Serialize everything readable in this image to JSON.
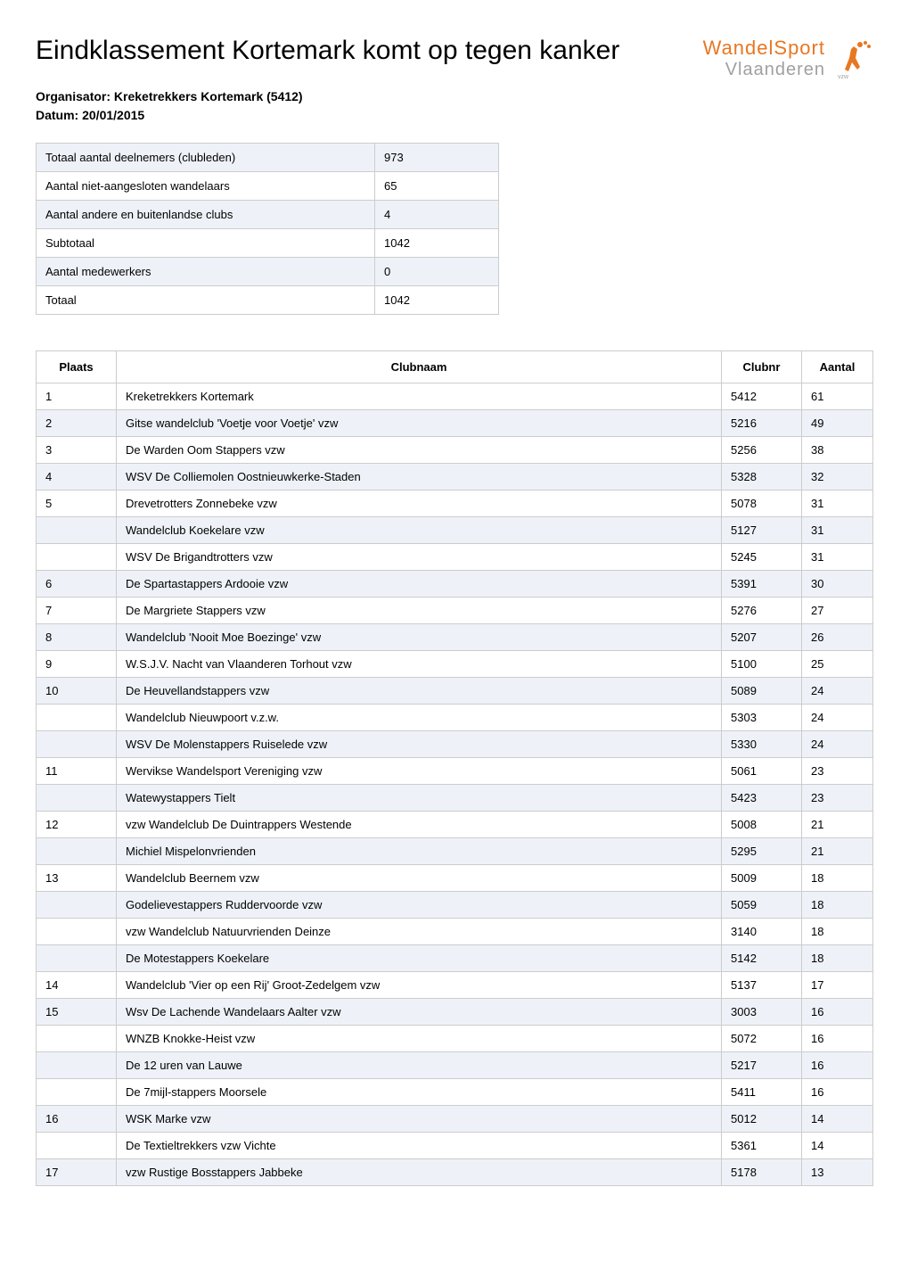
{
  "title": "Eindklassement Kortemark komt op tegen kanker",
  "organizer_label": "Organisator: Kreketrekkers Kortemark (5412)",
  "date_label": "Datum: 20/01/2015",
  "logo": {
    "line1": "WandelSport",
    "line2": "Vlaanderen",
    "suffix": "vzw",
    "primary_color": "#e87722",
    "secondary_color": "#a0a0a0"
  },
  "summary": {
    "rows": [
      {
        "label": "Totaal aantal deelnemers (clubleden)",
        "value": "973"
      },
      {
        "label": "Aantal niet-aangesloten wandelaars",
        "value": "65"
      },
      {
        "label": "Aantal andere en buitenlandse clubs",
        "value": "4"
      },
      {
        "label": "Subtotaal",
        "value": "1042"
      },
      {
        "label": "Aantal medewerkers",
        "value": "0"
      },
      {
        "label": "Totaal",
        "value": "1042"
      }
    ]
  },
  "ranking": {
    "headers": {
      "plaats": "Plaats",
      "clubnaam": "Clubnaam",
      "clubnr": "Clubnr",
      "aantal": "Aantal"
    },
    "rows": [
      {
        "plaats": "1",
        "clubnaam": "Kreketrekkers Kortemark",
        "clubnr": "5412",
        "aantal": "61"
      },
      {
        "plaats": "2",
        "clubnaam": "Gitse wandelclub 'Voetje voor Voetje' vzw",
        "clubnr": "5216",
        "aantal": "49"
      },
      {
        "plaats": "3",
        "clubnaam": "De Warden Oom Stappers vzw",
        "clubnr": "5256",
        "aantal": "38"
      },
      {
        "plaats": "4",
        "clubnaam": "WSV De Colliemolen Oostnieuwkerke-Staden",
        "clubnr": "5328",
        "aantal": "32"
      },
      {
        "plaats": "5",
        "clubnaam": "Drevetrotters Zonnebeke vzw",
        "clubnr": "5078",
        "aantal": "31"
      },
      {
        "plaats": "",
        "clubnaam": "Wandelclub Koekelare vzw",
        "clubnr": "5127",
        "aantal": "31"
      },
      {
        "plaats": "",
        "clubnaam": "WSV De Brigandtrotters vzw",
        "clubnr": "5245",
        "aantal": "31"
      },
      {
        "plaats": "6",
        "clubnaam": "De Spartastappers Ardooie vzw",
        "clubnr": "5391",
        "aantal": "30"
      },
      {
        "plaats": "7",
        "clubnaam": "De Margriete Stappers vzw",
        "clubnr": "5276",
        "aantal": "27"
      },
      {
        "plaats": "8",
        "clubnaam": "Wandelclub 'Nooit Moe Boezinge' vzw",
        "clubnr": "5207",
        "aantal": "26"
      },
      {
        "plaats": "9",
        "clubnaam": "W.S.J.V. Nacht van Vlaanderen Torhout vzw",
        "clubnr": "5100",
        "aantal": "25"
      },
      {
        "plaats": "10",
        "clubnaam": "De Heuvellandstappers vzw",
        "clubnr": "5089",
        "aantal": "24"
      },
      {
        "plaats": "",
        "clubnaam": "Wandelclub Nieuwpoort v.z.w.",
        "clubnr": "5303",
        "aantal": "24"
      },
      {
        "plaats": "",
        "clubnaam": "WSV De Molenstappers Ruiselede vzw",
        "clubnr": "5330",
        "aantal": "24"
      },
      {
        "plaats": "11",
        "clubnaam": "Wervikse Wandelsport Vereniging vzw",
        "clubnr": "5061",
        "aantal": "23"
      },
      {
        "plaats": "",
        "clubnaam": "Watewystappers Tielt",
        "clubnr": "5423",
        "aantal": "23"
      },
      {
        "plaats": "12",
        "clubnaam": "vzw Wandelclub De Duintrappers Westende",
        "clubnr": "5008",
        "aantal": "21"
      },
      {
        "plaats": "",
        "clubnaam": "Michiel Mispelonvrienden",
        "clubnr": "5295",
        "aantal": "21"
      },
      {
        "plaats": "13",
        "clubnaam": "Wandelclub Beernem vzw",
        "clubnr": "5009",
        "aantal": "18"
      },
      {
        "plaats": "",
        "clubnaam": "Godelievestappers Ruddervoorde vzw",
        "clubnr": "5059",
        "aantal": "18"
      },
      {
        "plaats": "",
        "clubnaam": "vzw Wandelclub Natuurvrienden Deinze",
        "clubnr": "3140",
        "aantal": "18"
      },
      {
        "plaats": "",
        "clubnaam": "De Motestappers Koekelare",
        "clubnr": "5142",
        "aantal": "18"
      },
      {
        "plaats": "14",
        "clubnaam": "Wandelclub 'Vier op een Rij' Groot-Zedelgem vzw",
        "clubnr": "5137",
        "aantal": "17"
      },
      {
        "plaats": "15",
        "clubnaam": "Wsv De Lachende Wandelaars Aalter vzw",
        "clubnr": "3003",
        "aantal": "16"
      },
      {
        "plaats": "",
        "clubnaam": "WNZB Knokke-Heist vzw",
        "clubnr": "5072",
        "aantal": "16"
      },
      {
        "plaats": "",
        "clubnaam": "De 12 uren van Lauwe",
        "clubnr": "5217",
        "aantal": "16"
      },
      {
        "plaats": "",
        "clubnaam": "De 7mijl-stappers Moorsele",
        "clubnr": "5411",
        "aantal": "16"
      },
      {
        "plaats": "16",
        "clubnaam": "WSK Marke vzw",
        "clubnr": "5012",
        "aantal": "14"
      },
      {
        "plaats": "",
        "clubnaam": "De Textieltrekkers vzw Vichte",
        "clubnr": "5361",
        "aantal": "14"
      },
      {
        "plaats": "17",
        "clubnaam": "vzw Rustige Bosstappers Jabbeke",
        "clubnr": "5178",
        "aantal": "13"
      }
    ]
  },
  "colors": {
    "row_alt_bg": "#eef2f8",
    "row_bg": "#ffffff",
    "border": "#cccccc",
    "text": "#000000"
  }
}
